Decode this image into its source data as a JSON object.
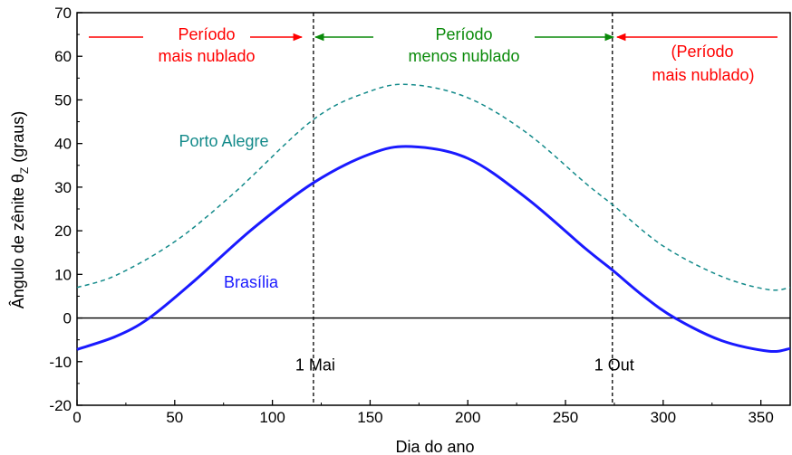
{
  "chart_data": {
    "type": "line",
    "xlabel": "Dia do ano",
    "ylabel_main": "Ângulo de zênite θ",
    "ylabel_sub": "Z",
    "ylabel_tail": " (graus)",
    "xlim": [
      0,
      365
    ],
    "ylim": [
      -20,
      70
    ],
    "xticks": [
      0,
      50,
      100,
      150,
      200,
      250,
      300,
      350
    ],
    "yticks": [
      -20,
      -10,
      0,
      10,
      20,
      30,
      40,
      50,
      60,
      70
    ],
    "grid": false,
    "legend": "none",
    "series": [
      {
        "name": "Brasília",
        "color": "#1a1aff",
        "style": "solid",
        "x": [
          0,
          20,
          37,
          60,
          90,
          121,
          150,
          171,
          200,
          230,
          260,
          274,
          290,
          306,
          330,
          354,
          365
        ],
        "y": [
          -7.2,
          -4.2,
          0,
          8.5,
          20.5,
          31.0,
          37.6,
          39.3,
          36.6,
          27.5,
          16.0,
          11.0,
          5.0,
          0,
          -5.2,
          -7.6,
          -7.0
        ]
      },
      {
        "name": "Porto Alegre",
        "color": "#138a8a",
        "style": "dashed",
        "x": [
          0,
          20,
          50,
          80,
          121,
          150,
          171,
          200,
          230,
          260,
          274,
          300,
          330,
          354,
          365
        ],
        "y": [
          7.0,
          9.8,
          17.5,
          28.5,
          45.5,
          52.0,
          53.5,
          50.5,
          42.5,
          31.0,
          26.0,
          16.5,
          9.5,
          6.5,
          7.0
        ]
      }
    ],
    "reference_lines": [
      {
        "type": "horizontal",
        "y": 0,
        "color": "#000000",
        "style": "solid"
      },
      {
        "type": "vertical",
        "x": 121,
        "label": "1 Mai",
        "color": "#000000",
        "style": "dashed"
      },
      {
        "type": "vertical",
        "x": 274,
        "label": "1 Out",
        "color": "#000000",
        "style": "dashed"
      }
    ],
    "annotations": {
      "brasilia_label": "Brasília",
      "porto_alegre_label": "Porto Alegre",
      "periodo_left_1": "Período",
      "periodo_left_2": "mais nublado",
      "periodo_mid_1": "Período",
      "periodo_mid_2": "menos nublado",
      "periodo_right_1": "(Período",
      "periodo_right_2": "mais nublado)",
      "red_color": "#ff0000",
      "green_color": "#0a8a0a",
      "blue_color": "#1a1aff",
      "teal_color": "#138a8a"
    }
  }
}
